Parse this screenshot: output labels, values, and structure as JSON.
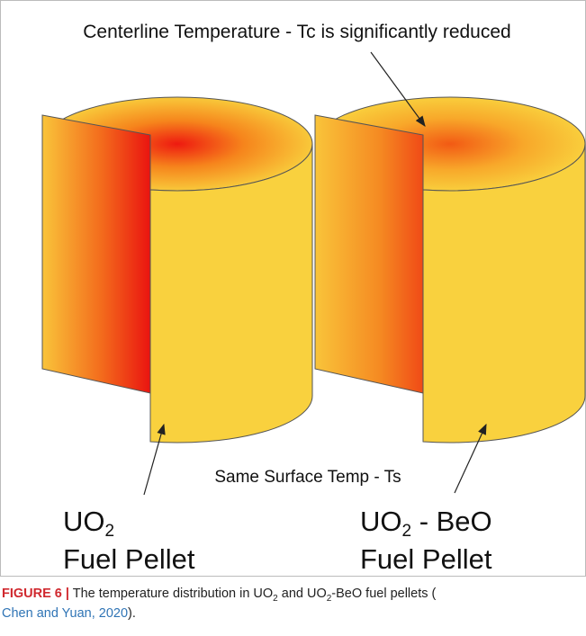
{
  "figure": {
    "top_annotation": "Centerline Temperature - Tc is significantly reduced",
    "bottom_annotation": "Same Surface Temp - Ts",
    "pellets": [
      {
        "formula": "UO",
        "subscript": "2",
        "label": "Fuel Pellet"
      },
      {
        "formula": "UO",
        "subscript": "2",
        "suffix": " - BeO",
        "label": "Fuel Pellet"
      }
    ]
  },
  "caption": {
    "label": "FIGURE 6 |",
    "text_1": " The temperature distribution in UO",
    "sub_1": "2",
    "text_2": " and UO",
    "sub_2": "2",
    "text_3": "-BeO fuel pellets (",
    "citation": "Chen and Yuan, 2020",
    "text_4": ")."
  }
}
